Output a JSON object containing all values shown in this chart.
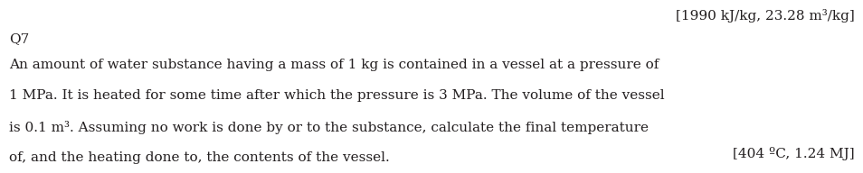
{
  "top_right_text": "[1990 kJ/kg, 23.28 m³/kg]",
  "question_label": "Q7",
  "body_lines": [
    "An amount of water substance having a mass of 1 kg is contained in a vessel at a pressure of",
    "1 MPa. It is heated for some time after which the pressure is 3 MPa. The volume of the vessel",
    "is 0.1 m³. Assuming no work is done by or to the substance, calculate the final temperature",
    "of, and the heating done to, the contents of the vessel."
  ],
  "answer_text": "[404 ºC, 1.24 MJ]",
  "background_color": "#ffffff",
  "text_color": "#231f20",
  "font_size": 11.0
}
